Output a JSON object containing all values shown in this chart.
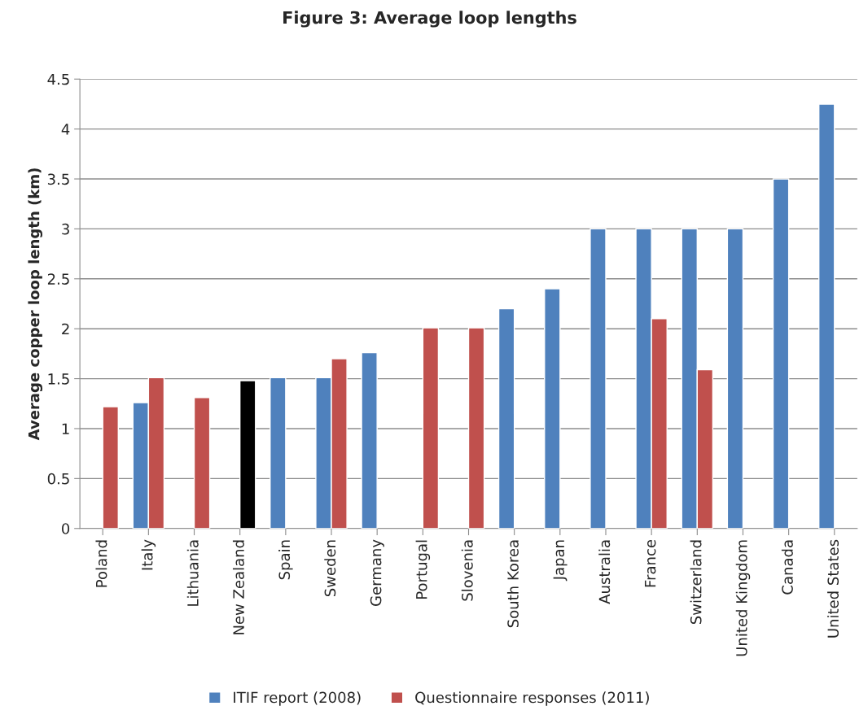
{
  "chart_data": {
    "type": "bar",
    "title": "Figure 3: Average loop lengths",
    "ylabel": "Average copper loop length (km)",
    "categories": [
      "Poland",
      "Italy",
      "Lithuania",
      "New Zealand",
      "Spain",
      "Sweden",
      "Germany",
      "Portugal",
      "Slovenia",
      "South Korea",
      "Japan",
      "Australia",
      "France",
      "Switzerland",
      "United Kingdom",
      "Canada",
      "United States"
    ],
    "series": [
      {
        "name": "ITIF report (2008)",
        "color": "#4f81bd",
        "values": [
          null,
          1.26,
          null,
          null,
          1.51,
          1.51,
          1.76,
          null,
          null,
          2.2,
          2.4,
          3.0,
          3.0,
          3.0,
          3.0,
          3.5,
          4.25
        ]
      },
      {
        "name": "Questionnaire responses (2011)",
        "color": "#c0504d",
        "colors": [
          "#c0504d",
          "#c0504d",
          "#c0504d",
          "#000000",
          "#c0504d",
          "#c0504d",
          "#c0504d",
          "#c0504d",
          "#c0504d",
          "#c0504d",
          "#c0504d",
          "#c0504d",
          "#c0504d",
          "#c0504d",
          "#c0504d",
          "#c0504d",
          "#c0504d"
        ],
        "values": [
          1.22,
          1.51,
          1.31,
          1.48,
          null,
          1.7,
          null,
          2.01,
          2.01,
          null,
          null,
          null,
          2.1,
          1.59,
          null,
          null,
          null
        ]
      }
    ],
    "ylim": [
      0,
      4.5
    ],
    "yticks": [
      0,
      0.5,
      1,
      1.5,
      2,
      2.5,
      3,
      3.5,
      4,
      4.5
    ],
    "grid": "y",
    "legend": "bottom"
  }
}
